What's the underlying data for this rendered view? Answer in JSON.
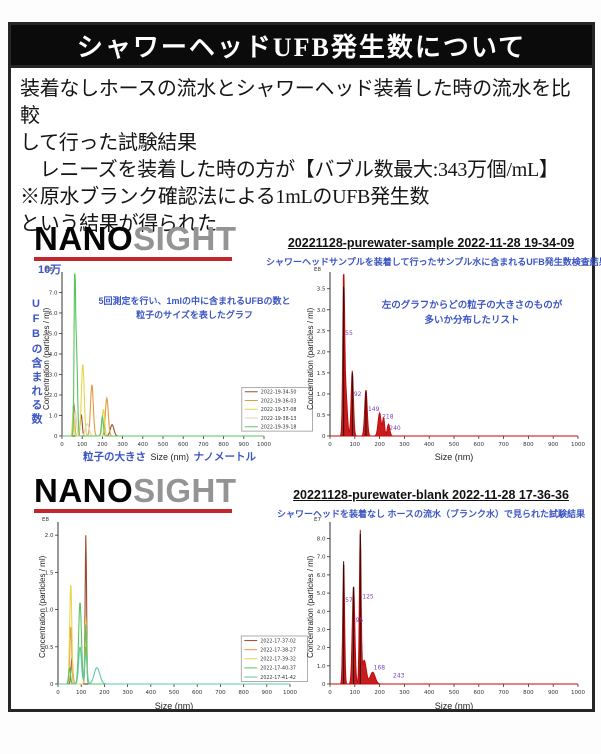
{
  "page": {
    "title": "シャワーヘッドUFB発生数について",
    "body_lines": [
      "装着なしホースの流水とシャワーヘッド装着した時の流水を比較",
      "して行った試験結果",
      "　レニーズを装着した時の方が【バブル数最大:343万個/mL】",
      "※原水ブランク確認法による1mLのUFB発生数",
      "という結果が得られた"
    ]
  },
  "brand": {
    "nano": "NANO",
    "sight": "SIGHT"
  },
  "colors": {
    "accent_blue": "#3b55c4",
    "underline_red": "#c1272d",
    "peak_label_purple": "#7b3fbf",
    "distribution_red": "#c40a0a"
  },
  "sections": [
    {
      "heading": "20221128-purewater-sample 2022-11-28 19-34-09",
      "subtitle": "シャワーヘッドサンプルを装着して行ったサンプル水に含まれるUFB発生数検査結果"
    },
    {
      "heading": "20221128-purewater-blank 2022-11-28 17-36-36",
      "subtitle": "シャワーヘッドを装着なし ホースの流水（ブランク水）で見られた試験結果"
    }
  ],
  "annotations": {
    "overlay": [
      "5回測定を行い、1mlの中に含まれるUFBの数と",
      "粒子のサイズを表したグラフ"
    ],
    "distribution": [
      "左のグラフからどの粒子の大きさのものが",
      "多いか分布したリスト"
    ]
  },
  "labels": {
    "concentration": "Concentration (particles / ml)",
    "size_nm": "Size (nm)",
    "ufb_vertical": "UFBの含まれる数",
    "man10": "10万",
    "particle_size_jp": "粒子の大きさ",
    "nanometer_jp": "ナノメートル"
  },
  "chart_data": [
    {
      "id": "sample-overlay",
      "type": "line",
      "xlabel": "粒子の大きさ Size (nm) ナノメートル",
      "ylabel": "Concentration (particles / ml)",
      "xlim": [
        0,
        1000
      ],
      "xticks": [
        0,
        100,
        200,
        300,
        400,
        500,
        600,
        700,
        800,
        900,
        1000
      ],
      "ylim": [
        0,
        7.9
      ],
      "yticks": [
        0,
        1,
        2,
        3,
        4,
        5,
        6,
        7
      ],
      "ytick_labels": [
        "0",
        "1.0",
        "2.0",
        "3.0",
        "4.0",
        "5.0",
        "6.0",
        "7.0"
      ],
      "exp_label": "E8",
      "margins": {
        "l": 34,
        "r": 48,
        "t": 10,
        "b": 26
      },
      "label_color": "#7b3fbf",
      "series": [
        {
          "name": "2022-19-34-50",
          "color": "#9c4a2e",
          "peaks": [
            {
              "c": 58,
              "h": 1.6,
              "w": 4
            },
            {
              "c": 95,
              "h": 1.05,
              "w": 5
            },
            {
              "c": 248,
              "h": 0.55,
              "w": 9
            }
          ]
        },
        {
          "name": "2022-19-36-03",
          "color": "#e29a3d",
          "peaks": [
            {
              "c": 60,
              "h": 0.95,
              "w": 4
            },
            {
              "c": 148,
              "h": 2.5,
              "w": 7
            },
            {
              "c": 222,
              "h": 1.85,
              "w": 7
            }
          ]
        },
        {
          "name": "2022-19-37-08",
          "color": "#e8d44d",
          "peaks": [
            {
              "c": 56,
              "h": 1.35,
              "w": 4
            },
            {
              "c": 103,
              "h": 3.5,
              "w": 7
            },
            {
              "c": 205,
              "h": 1.3,
              "w": 6
            }
          ]
        },
        {
          "name": "2022-19-38-13",
          "color": "#ddd5bd",
          "peaks": [
            {
              "c": 66,
              "h": 1.2,
              "w": 6
            },
            {
              "c": 125,
              "h": 0.6,
              "w": 9
            }
          ]
        },
        {
          "name": "2022-19-39-18",
          "color": "#57c45e",
          "peaks": [
            {
              "c": 63,
              "h": 7.5,
              "w": 3.2
            },
            {
              "c": 71,
              "h": 4.6,
              "w": 5
            },
            {
              "c": 200,
              "h": 0.95,
              "w": 5
            }
          ]
        }
      ],
      "legend": {
        "x": 0.89,
        "y": 0.7,
        "w": 0.35,
        "h": 0.27
      }
    },
    {
      "id": "sample-dist",
      "type": "area",
      "xlabel": "Size (nm)",
      "ylabel": "Concentration (particles / ml)",
      "xlim": [
        0,
        1000
      ],
      "xticks": [
        0,
        100,
        200,
        300,
        400,
        500,
        600,
        700,
        800,
        900,
        1000
      ],
      "ylim": [
        0,
        3.85
      ],
      "yticks": [
        0,
        0.5,
        1,
        1.5,
        2,
        2.5,
        3,
        3.5
      ],
      "ytick_labels": [
        "0",
        "0.5",
        "1.0",
        "1.5",
        "2.0",
        "2.5",
        "3.0",
        "3.5"
      ],
      "exp_label": "E8",
      "margins": {
        "l": 30,
        "r": 17,
        "t": 10,
        "b": 26
      },
      "label_color": "#7b3fbf",
      "series": [
        {
          "name": "sample",
          "color": "#c40a0a",
          "fill": true,
          "peaks": [
            {
              "c": 55,
              "h": 3.6,
              "w": 3.5
            },
            {
              "c": 63,
              "h": 1.1,
              "w": 6
            },
            {
              "c": 90,
              "h": 1.55,
              "w": 4.5
            },
            {
              "c": 145,
              "h": 1.1,
              "w": 5
            },
            {
              "c": 200,
              "h": 0.55,
              "w": 6
            },
            {
              "c": 216,
              "h": 0.42,
              "w": 4
            },
            {
              "c": 236,
              "h": 0.28,
              "w": 5
            }
          ]
        }
      ],
      "spikes": [
        {
          "x": 55,
          "h": 3.55
        },
        {
          "x": 90,
          "h": 1.5
        },
        {
          "x": 145,
          "h": 1.05
        }
      ],
      "peak_labels": [
        {
          "x": 55,
          "y": 2.4,
          "t": "55"
        },
        {
          "x": 90,
          "y": 0.95,
          "t": "92"
        },
        {
          "x": 147,
          "y": 0.6,
          "t": "149"
        },
        {
          "x": 204,
          "y": 0.42,
          "t": "218"
        },
        {
          "x": 233,
          "y": 0.14,
          "t": "240"
        }
      ]
    },
    {
      "id": "blank-overlay",
      "type": "line",
      "xlabel": "Size (nm)",
      "ylabel": "Concentration (particles / ml)",
      "xlim": [
        0,
        1000
      ],
      "xticks": [
        0,
        100,
        200,
        300,
        400,
        500,
        600,
        700,
        800,
        900,
        1000
      ],
      "ylim": [
        0,
        2.15
      ],
      "yticks": [
        0,
        0.5,
        1,
        1.5,
        2
      ],
      "ytick_labels": [
        "0",
        "0.5",
        "1.0",
        "1.5",
        "2.0"
      ],
      "exp_label": "E8",
      "margins": {
        "l": 34,
        "r": 20,
        "t": 10,
        "b": 26
      },
      "label_color": "#7b3fbf",
      "series": [
        {
          "name": "2022-17-37-02",
          "color": "#9c4a2e",
          "peaks": [
            {
              "c": 120,
              "h": 2.0,
              "w": 3
            },
            {
              "c": 60,
              "h": 0.35,
              "w": 4
            }
          ]
        },
        {
          "name": "2022-17-38-27",
          "color": "#e29a3d",
          "peaks": [
            {
              "c": 55,
              "h": 0.78,
              "w": 4
            },
            {
              "c": 120,
              "h": 0.5,
              "w": 4
            }
          ]
        },
        {
          "name": "2022-17-39-32",
          "color": "#e8d44d",
          "peaks": [
            {
              "c": 55,
              "h": 1.35,
              "w": 4.5
            },
            {
              "c": 120,
              "h": 0.9,
              "w": 4
            }
          ]
        },
        {
          "name": "2022-17-40-37",
          "color": "#57c45e",
          "peaks": [
            {
              "c": 95,
              "h": 1.1,
              "w": 6
            },
            {
              "c": 50,
              "h": 0.22,
              "w": 4
            },
            {
              "c": 120,
              "h": 0.8,
              "w": 3.5
            }
          ]
        },
        {
          "name": "2022-17-41-42",
          "color": "#5fc9a4",
          "peaks": [
            {
              "c": 168,
              "h": 0.22,
              "w": 12
            },
            {
              "c": 120,
              "h": 0.4,
              "w": 5
            },
            {
              "c": 95,
              "h": 0.5,
              "w": 6
            }
          ]
        }
      ],
      "legend": {
        "x": 0.79,
        "y": 0.7,
        "w": 0.285,
        "h": 0.285
      }
    },
    {
      "id": "blank-dist",
      "type": "area",
      "xlabel": "Size (nm)",
      "ylabel": "Concentration (particles / ml)",
      "xlim": [
        0,
        1000
      ],
      "xticks": [
        0,
        100,
        200,
        300,
        400,
        500,
        600,
        700,
        800,
        900,
        1000
      ],
      "ylim": [
        0,
        8.8
      ],
      "yticks": [
        0,
        1,
        2,
        3,
        4,
        5,
        6,
        7,
        8
      ],
      "ytick_labels": [
        "0",
        "1.0",
        "2.0",
        "3.0",
        "4.0",
        "5.0",
        "6.0",
        "7.0",
        "8.0"
      ],
      "exp_label": "E7",
      "margins": {
        "l": 30,
        "r": 17,
        "t": 10,
        "b": 26
      },
      "label_color": "#7b3fbf",
      "series": [
        {
          "name": "blank",
          "color": "#c40a0a",
          "fill": true,
          "peaks": [
            {
              "c": 55,
              "h": 6.8,
              "w": 3.5
            },
            {
              "c": 95,
              "h": 5.4,
              "w": 5
            },
            {
              "c": 122,
              "h": 8.3,
              "w": 3.5
            },
            {
              "c": 138,
              "h": 1.3,
              "w": 8
            },
            {
              "c": 172,
              "h": 0.65,
              "w": 10
            }
          ]
        }
      ],
      "spikes": [
        {
          "x": 55,
          "h": 6.75
        },
        {
          "x": 95,
          "h": 5.35
        },
        {
          "x": 122,
          "h": 8.25
        }
      ],
      "peak_labels": [
        {
          "x": 55,
          "y": 4.5,
          "t": "57"
        },
        {
          "x": 97,
          "y": 3.4,
          "t": "95"
        },
        {
          "x": 124,
          "y": 4.7,
          "t": "125"
        },
        {
          "x": 170,
          "y": 0.8,
          "t": "168"
        },
        {
          "x": 248,
          "y": 0.35,
          "t": "243"
        }
      ]
    }
  ]
}
